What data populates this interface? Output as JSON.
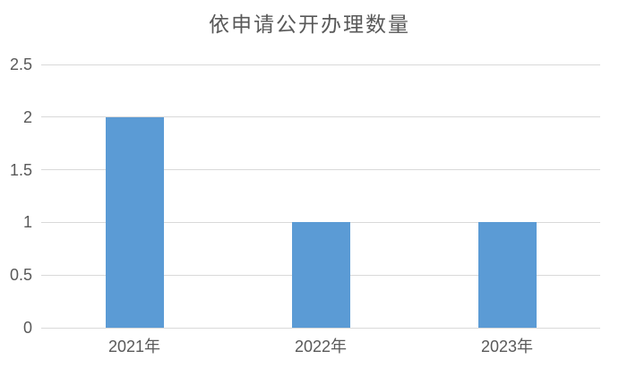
{
  "chart_data": {
    "type": "bar",
    "title": "依申请公开办理数量",
    "categories": [
      "2021年",
      "2022年",
      "2023年"
    ],
    "values": [
      2,
      1,
      1
    ],
    "xlabel": "",
    "ylabel": "",
    "ylim": [
      0,
      2.5
    ],
    "ytick_values": [
      0,
      0.5,
      1,
      1.5,
      2,
      2.5
    ],
    "ytick_labels": [
      "0",
      "0.5",
      "1",
      "1.5",
      "2",
      "2.5"
    ],
    "grid": true,
    "legend": "none",
    "bar_color": "#5b9bd5",
    "gridline_color": "#d9d9d9",
    "axis_text_color": "#595959",
    "title_color": "#595959",
    "background_color": "#ffffff"
  }
}
